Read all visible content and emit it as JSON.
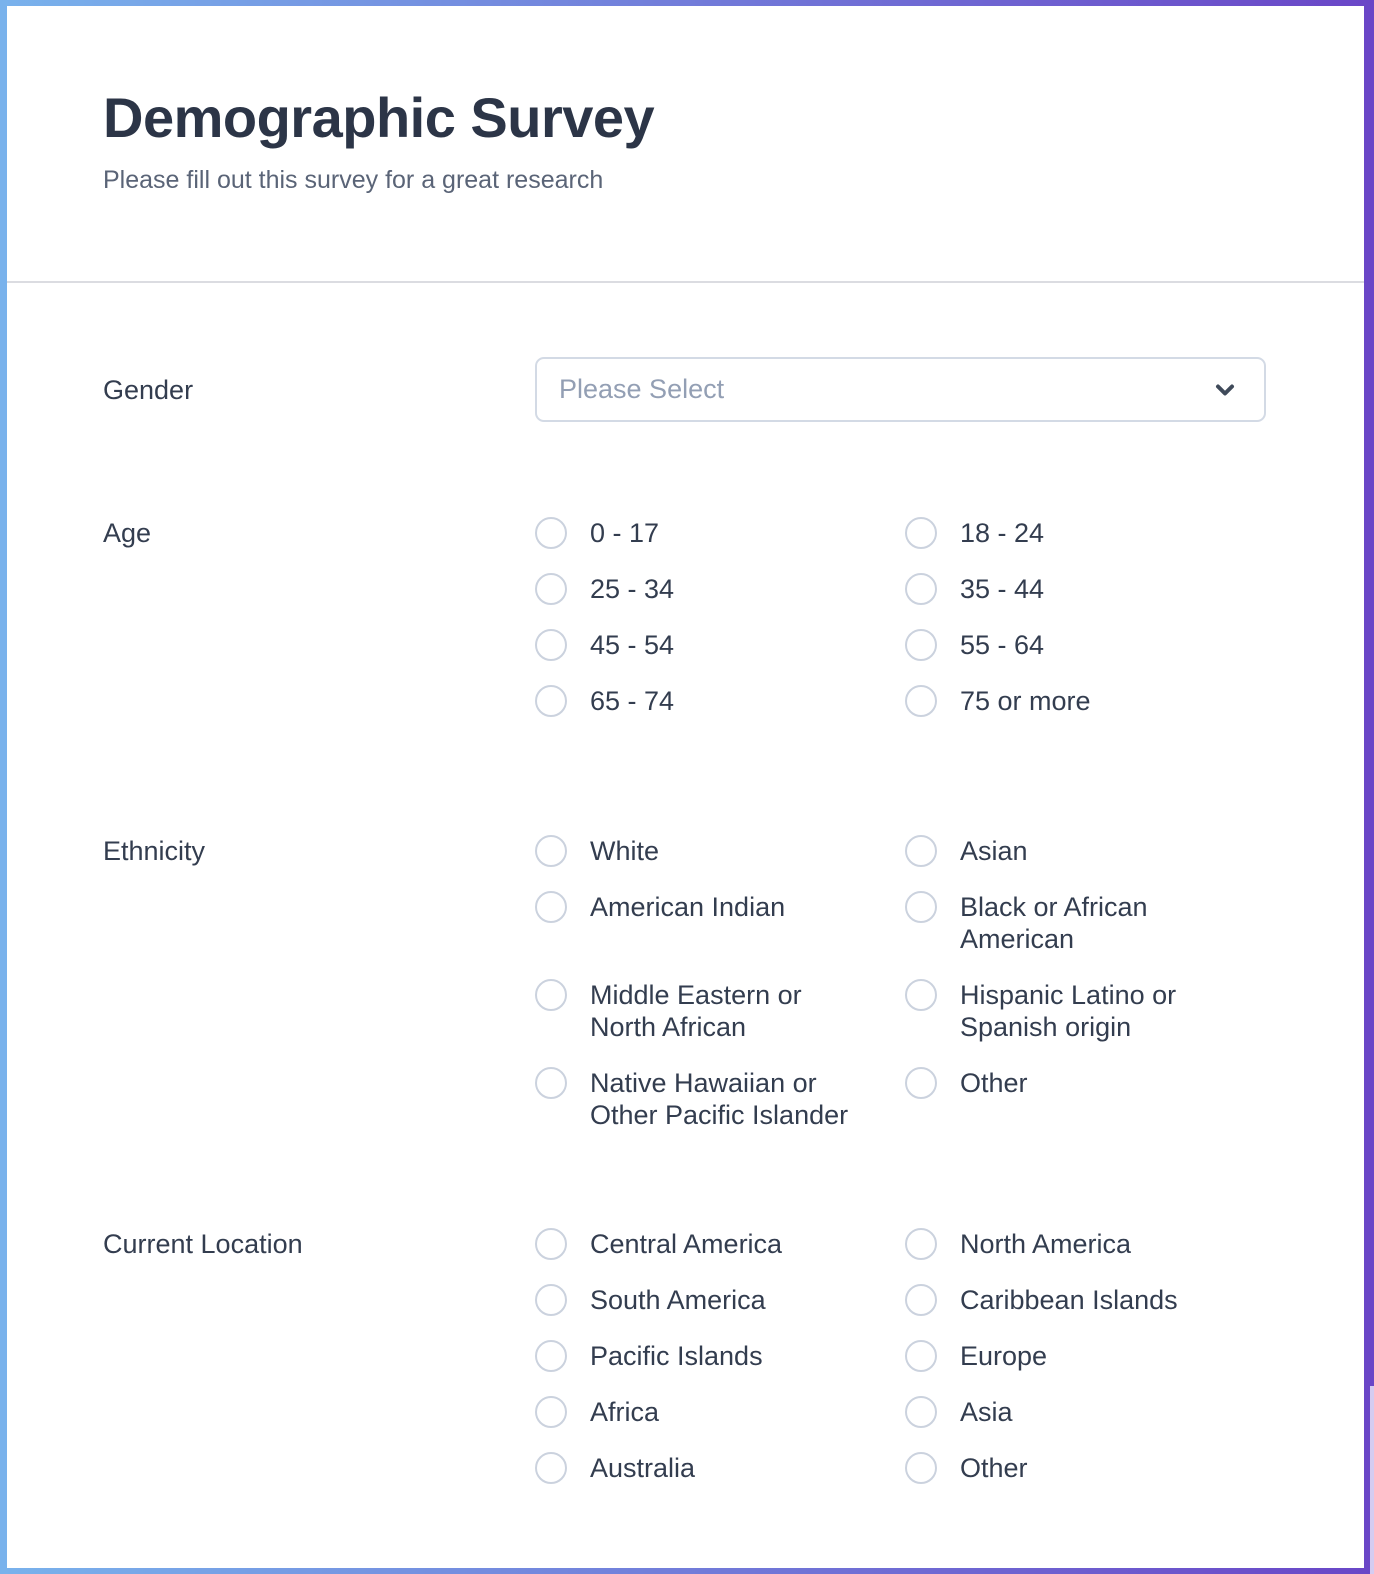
{
  "header": {
    "title": "Demographic Survey",
    "subtitle": "Please fill out this survey for a great research"
  },
  "fields": {
    "gender": {
      "label": "Gender",
      "placeholder": "Please Select"
    },
    "age": {
      "label": "Age",
      "options": [
        "0 - 17",
        "18 - 24",
        "25 - 34",
        "35 - 44",
        "45 - 54",
        "55 - 64",
        "65 - 74",
        "75 or more"
      ]
    },
    "ethnicity": {
      "label": "Ethnicity",
      "options": [
        "White",
        "Asian",
        "American Indian",
        "Black or African American",
        "Middle Eastern or North African",
        "Hispanic Latino or Spanish origin",
        "Native Hawaiian or Other Pacific Islander",
        "Other"
      ]
    },
    "location": {
      "label": "Current Location",
      "options": [
        "Central America",
        "North America",
        "South America",
        "Caribbean Islands",
        "Pacific Islands",
        "Europe",
        "Africa",
        "Asia",
        "Australia",
        "Other"
      ]
    }
  },
  "icons": {
    "select_chevron": "chevron-down"
  },
  "theme": {
    "border_gradient_start": "#79b2ec",
    "border_gradient_end": "#6a46c7",
    "text_dark": "#2c3547",
    "text_muted": "#5a6477",
    "text_option": "#333d4f",
    "placeholder": "#939fb4",
    "radio_border": "#cbd2de",
    "select_border": "#d3dae5",
    "divider": "#dbdce1",
    "chevron": "#3f4a5a",
    "scroll_thumb": "#d5ccf1"
  }
}
